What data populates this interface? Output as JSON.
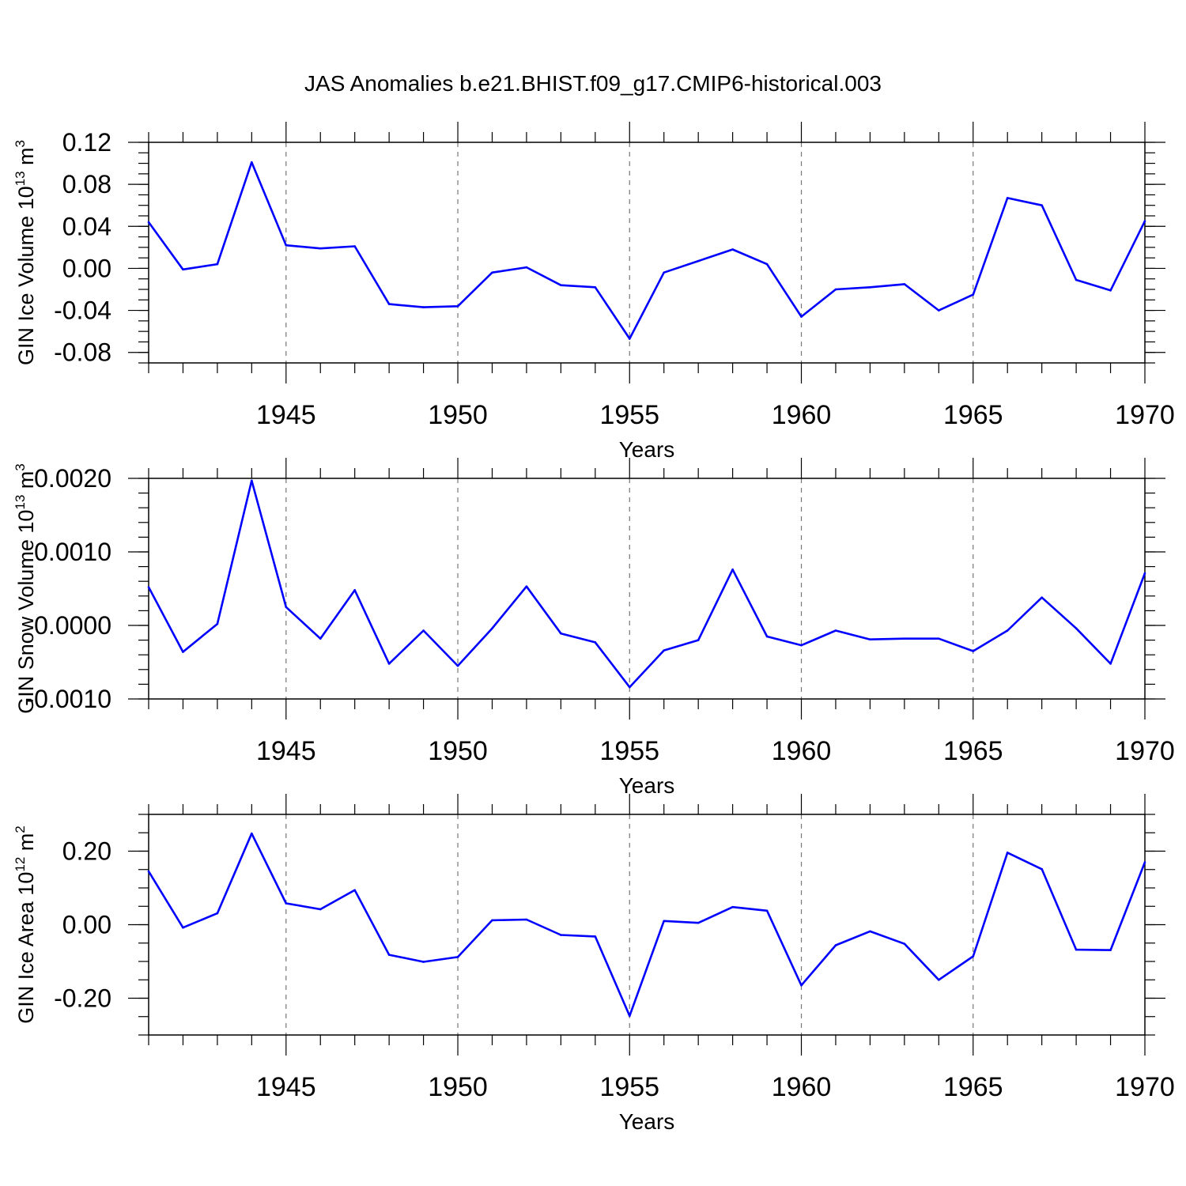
{
  "figure_title": "JAS Anomalies b.e21.BHIST.f09_g17.CMIP6-historical.003",
  "chart_data": [
    {
      "type": "line",
      "ylabel": "GIN Ice Volume 10",
      "ylabel_exp": "13",
      "ylabel_unit": " m",
      "ylabel_unit_exp": "3",
      "xlabel": "Years",
      "xlim": [
        1941,
        1970
      ],
      "ylim": [
        -0.09,
        0.12
      ],
      "yticks": [
        0.12,
        0.08,
        0.04,
        0.0,
        -0.04,
        -0.08
      ],
      "ytick_labels": [
        "0.12",
        "0.08",
        "0.04",
        "0.00",
        "-0.04",
        "-0.08"
      ],
      "yminor_step": 0.01,
      "xticks": [
        1945,
        1950,
        1955,
        1960,
        1965,
        1970
      ],
      "xtick_labels": [
        "1945",
        "1950",
        "1955",
        "1960",
        "1965",
        "1970"
      ],
      "color": "#0000ff",
      "x": [
        1941,
        1942,
        1943,
        1944,
        1945,
        1946,
        1947,
        1948,
        1949,
        1950,
        1951,
        1952,
        1953,
        1954,
        1955,
        1956,
        1957,
        1958,
        1959,
        1960,
        1961,
        1962,
        1963,
        1964,
        1965,
        1966,
        1967,
        1968,
        1969,
        1970
      ],
      "values": [
        0.044,
        -0.001,
        0.004,
        0.101,
        0.022,
        0.019,
        0.021,
        -0.034,
        -0.037,
        -0.036,
        -0.004,
        0.001,
        -0.016,
        -0.018,
        -0.067,
        -0.004,
        0.007,
        0.018,
        0.004,
        -0.046,
        -0.02,
        -0.018,
        -0.015,
        -0.04,
        -0.025,
        0.067,
        0.06,
        -0.011,
        -0.021,
        0.045
      ]
    },
    {
      "type": "line",
      "ylabel": "GIN Snow Volume 10",
      "ylabel_exp": "13",
      "ylabel_unit": " m",
      "ylabel_unit_exp": "3",
      "xlabel": "Years",
      "xlim": [
        1941,
        1970
      ],
      "ylim": [
        -0.001,
        0.002
      ],
      "yticks": [
        0.002,
        0.001,
        0.0,
        -0.001
      ],
      "ytick_labels": [
        "0.0020",
        "0.0010",
        "0.0000",
        "-0.0010"
      ],
      "yminor_step": 0.0002,
      "xticks": [
        1945,
        1950,
        1955,
        1960,
        1965,
        1970
      ],
      "xtick_labels": [
        "1945",
        "1950",
        "1955",
        "1960",
        "1965",
        "1970"
      ],
      "color": "#0000ff",
      "x": [
        1941,
        1942,
        1943,
        1944,
        1945,
        1946,
        1947,
        1948,
        1949,
        1950,
        1951,
        1952,
        1953,
        1954,
        1955,
        1956,
        1957,
        1958,
        1959,
        1960,
        1961,
        1962,
        1963,
        1964,
        1965,
        1966,
        1967,
        1968,
        1969,
        1970
      ],
      "values": [
        0.00052,
        -0.00036,
        2e-05,
        0.00197,
        0.00025,
        -0.00018,
        0.00048,
        -0.00052,
        -7e-05,
        -0.00055,
        -4e-05,
        0.00053,
        -0.00011,
        -0.00023,
        -0.00084,
        -0.00034,
        -0.0002,
        0.00076,
        -0.00015,
        -0.00027,
        -7e-05,
        -0.00019,
        -0.00018,
        -0.00018,
        -0.00035,
        -7e-05,
        0.00038,
        -4e-05,
        -0.00052,
        0.00071
      ]
    },
    {
      "type": "line",
      "ylabel": "GIN Ice Area 10",
      "ylabel_exp": "12",
      "ylabel_unit": " m",
      "ylabel_unit_exp": "2",
      "xlabel": "Years",
      "xlim": [
        1941,
        1970
      ],
      "ylim": [
        -0.3,
        0.3
      ],
      "yticks": [
        0.2,
        0.0,
        -0.2
      ],
      "ytick_labels": [
        "0.20",
        "0.00",
        "-0.20"
      ],
      "yminor_step": 0.05,
      "xticks": [
        1945,
        1950,
        1955,
        1960,
        1965,
        1970
      ],
      "xtick_labels": [
        "1945",
        "1950",
        "1955",
        "1960",
        "1965",
        "1970"
      ],
      "color": "#0000ff",
      "x": [
        1941,
        1942,
        1943,
        1944,
        1945,
        1946,
        1947,
        1948,
        1949,
        1950,
        1951,
        1952,
        1953,
        1954,
        1955,
        1956,
        1957,
        1958,
        1959,
        1960,
        1961,
        1962,
        1963,
        1964,
        1965,
        1966,
        1967,
        1968,
        1969,
        1970
      ],
      "values": [
        0.145,
        -0.008,
        0.031,
        0.248,
        0.058,
        0.042,
        0.094,
        -0.082,
        -0.101,
        -0.088,
        0.012,
        0.014,
        -0.028,
        -0.032,
        -0.248,
        0.01,
        0.005,
        0.048,
        0.038,
        -0.165,
        -0.056,
        -0.018,
        -0.052,
        -0.15,
        -0.086,
        0.196,
        0.151,
        -0.068,
        -0.069,
        0.17
      ]
    }
  ]
}
